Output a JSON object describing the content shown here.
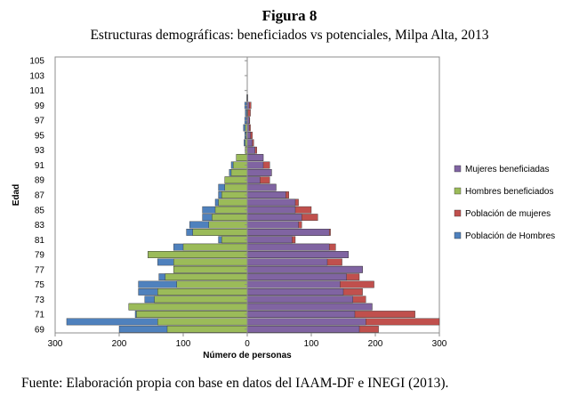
{
  "figure": {
    "label": "Figura 8",
    "subtitle": "Estructuras demográficas: beneficiados vs potenciales, Milpa Alta, 2013",
    "source": "Fuente: Elaboración propia con base en datos del IAAM-DF e INEGI (2013)."
  },
  "chart_data": {
    "type": "bar",
    "orientation": "horizontal",
    "layout": "population pyramid (left = hombres, right = mujeres)",
    "xlabel": "Número de personas",
    "ylabel": "Edad",
    "xlim": [
      -300,
      300
    ],
    "x_tick_values": [
      -300,
      -200,
      -100,
      0,
      100,
      200,
      300
    ],
    "x_tick_labels": [
      "300",
      "200",
      "100",
      "0",
      "100",
      "200",
      "300"
    ],
    "y_tick_labels": [
      "69",
      "71",
      "73",
      "75",
      "77",
      "79",
      "81",
      "83",
      "85",
      "87",
      "89",
      "91",
      "93",
      "95",
      "97",
      "99",
      "101",
      "103",
      "105"
    ],
    "grid": false,
    "legend_position": "right",
    "ages": [
      69,
      70,
      71,
      72,
      73,
      74,
      75,
      76,
      77,
      78,
      79,
      80,
      81,
      82,
      83,
      84,
      85,
      86,
      87,
      88,
      89,
      90,
      91,
      92,
      93,
      94,
      95,
      96,
      97,
      98,
      99,
      100,
      101,
      102,
      103,
      104,
      105
    ],
    "series": [
      {
        "name": "Población de Hombres",
        "color": "#4f81bd",
        "side": "left",
        "values": [
          200,
          282,
          175,
          185,
          160,
          170,
          170,
          138,
          115,
          140,
          155,
          115,
          45,
          95,
          90,
          70,
          70,
          50,
          45,
          45,
          35,
          28,
          25,
          17,
          3,
          5,
          4,
          6,
          4,
          3,
          4,
          1,
          0,
          0,
          0,
          0,
          0
        ]
      },
      {
        "name": "Hombres beneficiados",
        "color": "#9bbb59",
        "side": "left",
        "values": [
          125,
          140,
          173,
          185,
          145,
          140,
          110,
          128,
          115,
          115,
          155,
          100,
          40,
          85,
          60,
          55,
          50,
          45,
          40,
          35,
          35,
          25,
          22,
          17,
          3,
          3,
          2,
          3,
          1,
          1,
          1,
          0,
          0,
          0,
          0,
          0,
          0
        ]
      },
      {
        "name": "Población de mujeres",
        "color": "#c0504d",
        "side": "right",
        "values": [
          205,
          300,
          262,
          195,
          185,
          180,
          198,
          175,
          180,
          148,
          158,
          138,
          75,
          130,
          85,
          110,
          100,
          80,
          65,
          45,
          35,
          38,
          35,
          25,
          15,
          10,
          8,
          5,
          4,
          5,
          6,
          1,
          0,
          0,
          0,
          0,
          0
        ]
      },
      {
        "name": "Mujeres beneficiadas",
        "color": "#8064a2",
        "side": "right",
        "values": [
          175,
          185,
          168,
          195,
          165,
          150,
          145,
          155,
          180,
          125,
          158,
          128,
          70,
          128,
          80,
          85,
          75,
          75,
          60,
          45,
          20,
          38,
          25,
          25,
          12,
          8,
          5,
          3,
          3,
          1,
          3,
          1,
          0,
          0,
          0,
          0,
          0
        ]
      }
    ],
    "legend_order": [
      "Mujeres beneficiadas",
      "Hombres beneficiados",
      "Población de mujeres",
      "Población de Hombres"
    ]
  }
}
